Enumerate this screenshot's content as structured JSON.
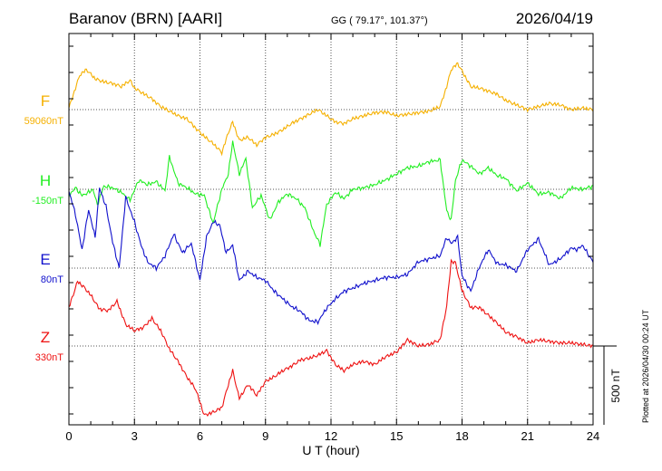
{
  "header": {
    "station": "Baranov (BRN)  [AARI]",
    "coords": "GG ( 79.17°, 101.37°)",
    "date": "2026/04/19"
  },
  "footer": {
    "xlabel": "U T (hour)",
    "plotted": "Plotted at 2026/04/30 00:24 UT"
  },
  "colors": {
    "F": "#f5b000",
    "H": "#22ee22",
    "E": "#1010cc",
    "Z": "#ee1111"
  },
  "chart_data": {
    "type": "line",
    "x_unit": "hour UT",
    "xlim": [
      0,
      24
    ],
    "x_ticks": [
      0,
      3,
      6,
      9,
      12,
      15,
      18,
      21,
      24
    ],
    "scale_bar": "500 nT",
    "series": [
      {
        "name": "F",
        "baseline_label": "59060nT",
        "x": [
          0,
          0.5,
          0.8,
          1.2,
          1.6,
          2.0,
          2.4,
          2.8,
          3.0,
          3.4,
          3.8,
          4.2,
          4.6,
          5.0,
          5.4,
          5.8,
          6.2,
          6.6,
          7.0,
          7.3,
          7.5,
          7.8,
          8.2,
          8.6,
          9.0,
          9.4,
          9.8,
          10.2,
          10.6,
          11.0,
          11.4,
          11.8,
          12.2,
          12.6,
          13.0,
          13.5,
          14.0,
          14.5,
          15.0,
          15.5,
          16.0,
          16.5,
          17.0,
          17.3,
          17.5,
          17.8,
          18.0,
          18.4,
          18.8,
          19.2,
          19.6,
          20.0,
          20.5,
          21.0,
          21.5,
          22.0,
          22.5,
          23.0,
          23.5,
          24.0
        ],
        "values": [
          10,
          225,
          260,
          200,
          180,
          170,
          150,
          190,
          140,
          105,
          70,
          20,
          -10,
          -40,
          -60,
          -120,
          -175,
          -220,
          -280,
          -150,
          -80,
          -200,
          -180,
          -230,
          -180,
          -160,
          -130,
          -90,
          -60,
          -30,
          0,
          -40,
          -80,
          -90,
          -60,
          -40,
          -20,
          -15,
          -40,
          -30,
          -20,
          -10,
          20,
          150,
          260,
          300,
          250,
          150,
          140,
          120,
          100,
          60,
          30,
          0,
          20,
          40,
          30,
          0,
          10,
          0
        ]
      },
      {
        "name": "H",
        "baseline_label": "-150nT",
        "x": [
          0,
          0.3,
          0.6,
          0.9,
          1.1,
          1.3,
          1.6,
          2.0,
          2.4,
          2.8,
          3.2,
          3.6,
          4.0,
          4.4,
          4.6,
          5.0,
          5.4,
          5.8,
          6.2,
          6.6,
          7.0,
          7.3,
          7.5,
          7.8,
          8.1,
          8.4,
          8.8,
          9.2,
          9.6,
          10.0,
          10.4,
          10.8,
          11.2,
          11.5,
          11.8,
          12.2,
          12.6,
          13.0,
          13.5,
          14.0,
          14.5,
          15.0,
          15.5,
          16.0,
          16.5,
          17.0,
          17.3,
          17.5,
          17.7,
          18.0,
          18.4,
          18.8,
          19.2,
          19.6,
          20.0,
          20.5,
          21.0,
          21.5,
          22.0,
          22.5,
          23.0,
          23.5,
          24.0
        ],
        "values": [
          -40,
          10,
          -40,
          -20,
          0,
          -100,
          20,
          10,
          -20,
          -70,
          60,
          30,
          50,
          -10,
          210,
          40,
          10,
          -30,
          -40,
          -220,
          0,
          100,
          310,
          100,
          200,
          -120,
          -40,
          -200,
          -80,
          -30,
          -60,
          -120,
          -270,
          -360,
          -100,
          -20,
          -60,
          0,
          10,
          30,
          60,
          100,
          140,
          150,
          180,
          190,
          -140,
          -200,
          60,
          190,
          150,
          100,
          140,
          90,
          70,
          -10,
          40,
          -30,
          -20,
          -60,
          10,
          0,
          20
        ]
      },
      {
        "name": "E",
        "baseline_label": "80nT",
        "x": [
          0,
          0.3,
          0.6,
          0.9,
          1.2,
          1.4,
          1.7,
          2.0,
          2.3,
          2.6,
          3.0,
          3.3,
          3.6,
          4.0,
          4.4,
          4.8,
          5.2,
          5.6,
          6.0,
          6.3,
          6.6,
          6.9,
          7.2,
          7.5,
          7.8,
          8.2,
          8.6,
          9.0,
          9.4,
          9.8,
          10.2,
          10.6,
          11.0,
          11.4,
          11.8,
          12.2,
          12.6,
          13.0,
          13.5,
          14.0,
          14.5,
          15.0,
          15.5,
          16.0,
          16.5,
          17.0,
          17.3,
          17.5,
          17.8,
          18.0,
          18.4,
          18.8,
          19.2,
          19.6,
          20.0,
          20.5,
          21.0,
          21.5,
          22.0,
          22.5,
          23.0,
          23.3,
          23.5,
          24.0
        ],
        "values": [
          500,
          350,
          120,
          380,
          200,
          520,
          400,
          170,
          0,
          460,
          300,
          150,
          40,
          0,
          80,
          220,
          100,
          160,
          -80,
          200,
          300,
          280,
          100,
          150,
          -80,
          -20,
          -60,
          -80,
          -150,
          -200,
          -250,
          -280,
          -340,
          -350,
          -260,
          -200,
          -150,
          -130,
          -100,
          -80,
          -60,
          -60,
          -40,
          40,
          60,
          80,
          200,
          160,
          200,
          -50,
          -150,
          10,
          120,
          30,
          20,
          -20,
          120,
          190,
          20,
          60,
          130,
          120,
          150,
          40
        ]
      },
      {
        "name": "Z",
        "baseline_label": "330nT",
        "x": [
          0,
          0.4,
          0.7,
          1.0,
          1.4,
          1.8,
          2.2,
          2.6,
          3.0,
          3.4,
          3.8,
          4.2,
          4.6,
          5.0,
          5.4,
          5.8,
          6.2,
          6.6,
          7.0,
          7.3,
          7.5,
          7.8,
          8.2,
          8.6,
          9.0,
          9.4,
          9.8,
          10.2,
          10.6,
          11.0,
          11.4,
          11.8,
          12.2,
          12.6,
          13.0,
          13.5,
          14.0,
          14.5,
          15.0,
          15.5,
          16.0,
          16.5,
          17.0,
          17.3,
          17.5,
          17.7,
          18.0,
          18.4,
          18.8,
          19.2,
          19.6,
          20.0,
          20.5,
          21.0,
          21.5,
          22.0,
          22.5,
          23.0,
          23.5,
          24.0
        ],
        "values": [
          250,
          420,
          380,
          330,
          240,
          230,
          290,
          140,
          100,
          120,
          180,
          100,
          -20,
          -100,
          -200,
          -280,
          -450,
          -430,
          -400,
          -250,
          -160,
          -340,
          -250,
          -320,
          -230,
          -200,
          -160,
          -130,
          -90,
          -80,
          -60,
          -30,
          -120,
          -160,
          -120,
          -100,
          -120,
          -70,
          -40,
          40,
          0,
          10,
          40,
          260,
          550,
          540,
          360,
          250,
          250,
          200,
          150,
          90,
          60,
          20,
          40,
          30,
          20,
          20,
          10,
          0
        ]
      }
    ]
  }
}
